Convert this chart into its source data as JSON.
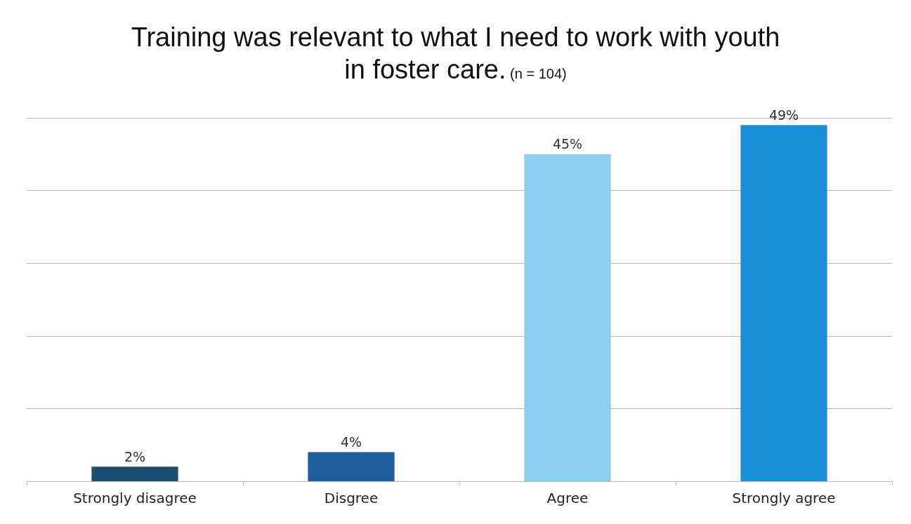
{
  "chart_data": {
    "type": "bar",
    "title": "Training was relevant to what I need to work with youth in foster care.",
    "subtitle": "(n = 104)",
    "categories": [
      "Strongly disagree",
      "Disgree",
      "Agree",
      "Strongly agree"
    ],
    "values": [
      2,
      4,
      45,
      49
    ],
    "value_labels": [
      "2%",
      "4%",
      "45%",
      "49%"
    ],
    "colors": [
      "#1b4f72",
      "#1f5f9e",
      "#8ccfef",
      "#1b8fd6"
    ],
    "tick_labels": "x",
    "grid": "y"
  }
}
